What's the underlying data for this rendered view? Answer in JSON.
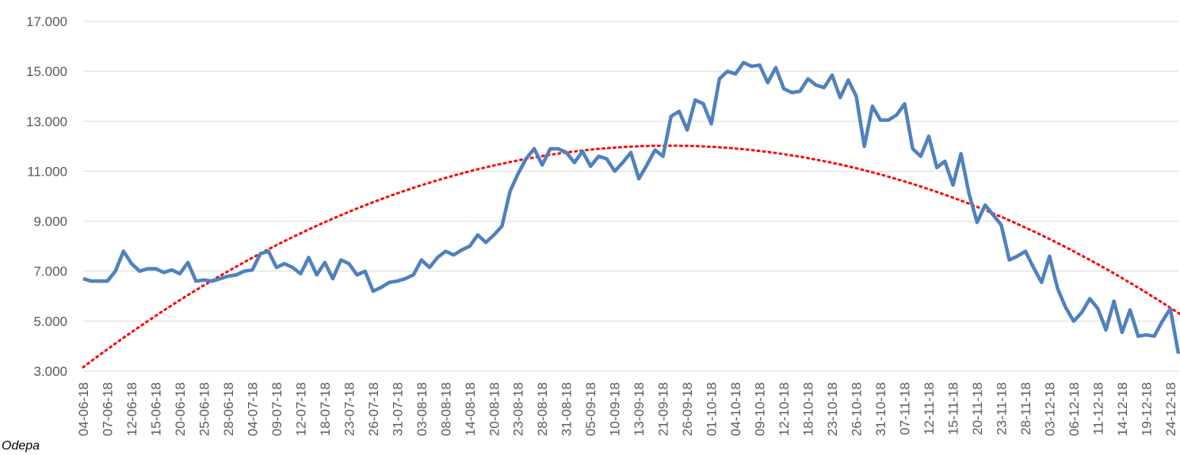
{
  "chart_data": {
    "type": "line",
    "source": "Odepa",
    "categories": [
      "04-06-18",
      null,
      null,
      "07-06-18",
      null,
      null,
      "12-06-18",
      null,
      null,
      "15-06-18",
      null,
      null,
      "20-06-18",
      null,
      null,
      "25-06-18",
      null,
      null,
      "28-06-18",
      null,
      null,
      "04-07-18",
      null,
      null,
      "09-07-18",
      null,
      null,
      "12-07-18",
      null,
      null,
      "18-07-18",
      null,
      null,
      "23-07-18",
      null,
      null,
      "26-07-18",
      null,
      null,
      "31-07-18",
      null,
      null,
      "03-08-18",
      null,
      null,
      "08-08-18",
      null,
      null,
      "14-08-18",
      null,
      null,
      "20-08-18",
      null,
      null,
      "23-08-18",
      null,
      null,
      "28-08-18",
      null,
      null,
      "31-08-18",
      null,
      null,
      "05-09-18",
      null,
      null,
      "10-09-18",
      null,
      null,
      "13-09-18",
      null,
      null,
      "21-09-18",
      null,
      null,
      "26-09-18",
      null,
      null,
      "01-10-18",
      null,
      null,
      "04-10-18",
      null,
      null,
      "09-10-18",
      null,
      null,
      "12-10-18",
      null,
      null,
      "18-10-18",
      null,
      null,
      "23-10-18",
      null,
      null,
      "26-10-18",
      null,
      null,
      "31-10-18",
      null,
      null,
      "07-11-18",
      null,
      null,
      "12-11-18",
      null,
      null,
      "15-11-18",
      null,
      null,
      "20-11-18",
      null,
      null,
      "23-11-18",
      null,
      null,
      "28-11-18",
      null,
      null,
      "03-12-18",
      null,
      null,
      "06-12-18",
      null,
      null,
      "11-12-18",
      null,
      null,
      "14-12-18",
      null,
      null,
      "19-12-18",
      null,
      null,
      "24-12-18",
      null
    ],
    "series": [
      {
        "color": "#4f81bd",
        "values": [
          6700,
          6600,
          6600,
          6600,
          7000,
          7800,
          7300,
          7000,
          7100,
          7100,
          6950,
          7050,
          6900,
          7350,
          6600,
          6650,
          6600,
          6700,
          6800,
          6850,
          7000,
          7050,
          7700,
          7800,
          7150,
          7300,
          7150,
          6900,
          7550,
          6850,
          7350,
          6700,
          7450,
          7300,
          6850,
          7000,
          6200,
          6350,
          6550,
          6600,
          6700,
          6850,
          7450,
          7150,
          7550,
          7800,
          7650,
          7850,
          8000,
          8450,
          8150,
          8450,
          8800,
          10200,
          10900,
          11500,
          11900,
          11250,
          11900,
          11900,
          11750,
          11350,
          11800,
          11200,
          11600,
          11500,
          11000,
          11350,
          11750,
          10700,
          11250,
          11850,
          11600,
          13200,
          13400,
          12650,
          13850,
          13700,
          12900,
          14700,
          15000,
          14900,
          15350,
          15200,
          15250,
          14550,
          15150,
          14300,
          14150,
          14200,
          14700,
          14450,
          14350,
          14850,
          13950,
          14650,
          14000,
          12000,
          13600,
          13050,
          13050,
          13250,
          13700,
          11900,
          11600,
          12400,
          11150,
          11400,
          10450,
          11700,
          10100,
          8950,
          9650,
          9250,
          8850,
          7450,
          7600,
          7800,
          7150,
          6550,
          7600,
          6300,
          5550,
          5000,
          5350,
          5900,
          5500,
          4650,
          5800,
          4550,
          5450,
          4400,
          4450,
          4400,
          5000,
          5500,
          3700
        ]
      }
    ],
    "trendline": {
      "type": "polynomial",
      "order": 2,
      "color": "#ff0000"
    },
    "ylim": [
      3000,
      17000
    ],
    "yticks": [
      {
        "value": 3000,
        "label": "3.000"
      },
      {
        "value": 5000,
        "label": "5.000"
      },
      {
        "value": 7000,
        "label": "7.000"
      },
      {
        "value": 9000,
        "label": "9.000"
      },
      {
        "value": 11000,
        "label": "11.000"
      },
      {
        "value": 13000,
        "label": "13.000"
      },
      {
        "value": 15000,
        "label": "15.000"
      },
      {
        "value": 17000,
        "label": "17.000"
      }
    ],
    "grid": true
  }
}
